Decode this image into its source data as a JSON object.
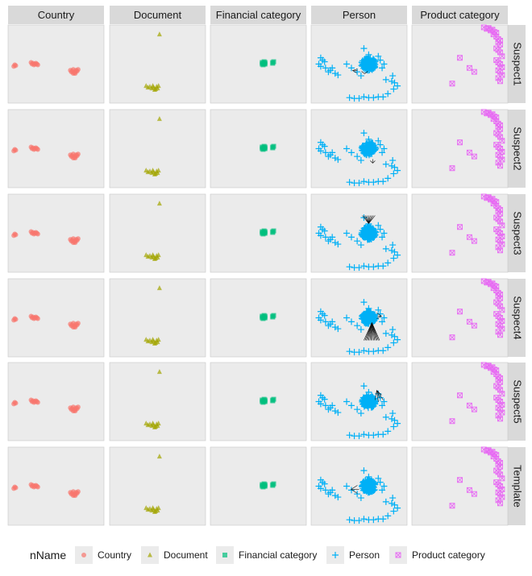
{
  "chart_data": {
    "type": "scatter",
    "facet_cols": [
      "Country",
      "Document",
      "Financial category",
      "Person",
      "Product category"
    ],
    "facet_rows": [
      "Suspect1",
      "Suspect2",
      "Suspect3",
      "Suspect4",
      "Suspect5",
      "Template"
    ],
    "legend": {
      "title": "nName",
      "position": "bottom",
      "entries": [
        {
          "label": "Country",
          "color": "#F8766D",
          "shape": "circle"
        },
        {
          "label": "Document",
          "color": "#A3A500",
          "shape": "triangle"
        },
        {
          "label": "Financial category",
          "color": "#00BF7D",
          "shape": "square"
        },
        {
          "label": "Person",
          "color": "#00B0F6",
          "shape": "plus"
        },
        {
          "label": "Product category",
          "color": "#E76BF3",
          "shape": "boxed-x"
        }
      ]
    },
    "panel_background": "#EBEBEB",
    "strip_background": "#D9D9D9",
    "grid": false,
    "axes_visible": false,
    "xlim": [
      0,
      100
    ],
    "ylim": [
      0,
      100
    ],
    "series_points": {
      "Country": [
        [
          6,
          47
        ],
        [
          7,
          49
        ],
        [
          8,
          48
        ],
        [
          24,
          52
        ],
        [
          25,
          50
        ],
        [
          26,
          51
        ],
        [
          27,
          49
        ],
        [
          28,
          50
        ],
        [
          29,
          51
        ],
        [
          30,
          50
        ],
        [
          31,
          49
        ],
        [
          65,
          42
        ],
        [
          66,
          40
        ],
        [
          67,
          41
        ],
        [
          68,
          43
        ],
        [
          69,
          39
        ],
        [
          70,
          40
        ],
        [
          71,
          42
        ],
        [
          72,
          41
        ],
        [
          73,
          43
        ],
        [
          68,
          38
        ],
        [
          70,
          38
        ]
      ],
      "Document": [
        [
          52,
          88
        ],
        [
          38,
          22
        ],
        [
          40,
          20
        ],
        [
          42,
          21
        ],
        [
          44,
          19
        ],
        [
          46,
          20
        ],
        [
          48,
          18
        ],
        [
          49,
          21
        ],
        [
          50,
          19
        ],
        [
          51,
          22
        ],
        [
          47,
          17
        ],
        [
          45,
          22
        ]
      ],
      "Financial category": [
        [
          54,
          52
        ],
        [
          55,
          51
        ],
        [
          56,
          53
        ],
        [
          57,
          50
        ],
        [
          55,
          49
        ],
        [
          56,
          50
        ],
        [
          57,
          52
        ],
        [
          54,
          50
        ],
        [
          56,
          51
        ],
        [
          65,
          52
        ],
        [
          66,
          53
        ],
        [
          65,
          51
        ]
      ],
      "Person": [
        [
          10,
          58
        ],
        [
          12,
          55
        ],
        [
          14,
          53
        ],
        [
          8,
          50
        ],
        [
          10,
          47
        ],
        [
          15,
          45
        ],
        [
          18,
          40
        ],
        [
          20,
          42
        ],
        [
          22,
          45
        ],
        [
          25,
          38
        ],
        [
          28,
          36
        ],
        [
          55,
          70
        ],
        [
          60,
          62
        ],
        [
          60,
          56
        ],
        [
          76,
          50
        ],
        [
          85,
          35
        ],
        [
          78,
          30
        ],
        [
          84,
          28
        ],
        [
          87,
          26
        ],
        [
          90,
          22
        ],
        [
          86,
          18
        ],
        [
          80,
          12
        ],
        [
          75,
          8
        ],
        [
          70,
          8
        ],
        [
          65,
          7
        ],
        [
          60,
          7
        ],
        [
          55,
          8
        ],
        [
          50,
          6
        ],
        [
          45,
          6
        ],
        [
          40,
          7
        ],
        [
          37,
          50
        ],
        [
          42,
          45
        ],
        [
          48,
          40
        ],
        [
          52,
          35
        ],
        [
          72,
          55
        ],
        [
          74,
          45
        ],
        [
          70,
          60
        ]
      ],
      "Product category": [
        [
          75,
          97
        ],
        [
          78,
          95
        ],
        [
          80,
          96
        ],
        [
          82,
          93
        ],
        [
          84,
          94
        ],
        [
          86,
          91
        ],
        [
          88,
          90
        ],
        [
          85,
          88
        ],
        [
          88,
          85
        ],
        [
          90,
          82
        ],
        [
          92,
          80
        ],
        [
          90,
          78
        ],
        [
          92,
          75
        ],
        [
          88,
          70
        ],
        [
          90,
          68
        ],
        [
          92,
          65
        ],
        [
          94,
          60
        ],
        [
          88,
          55
        ],
        [
          90,
          52
        ],
        [
          92,
          50
        ],
        [
          94,
          46
        ],
        [
          90,
          42
        ],
        [
          92,
          40
        ],
        [
          94,
          36
        ],
        [
          90,
          32
        ],
        [
          92,
          28
        ],
        [
          60,
          45
        ],
        [
          65,
          40
        ],
        [
          42,
          25
        ],
        [
          50,
          58
        ]
      ]
    }
  }
}
